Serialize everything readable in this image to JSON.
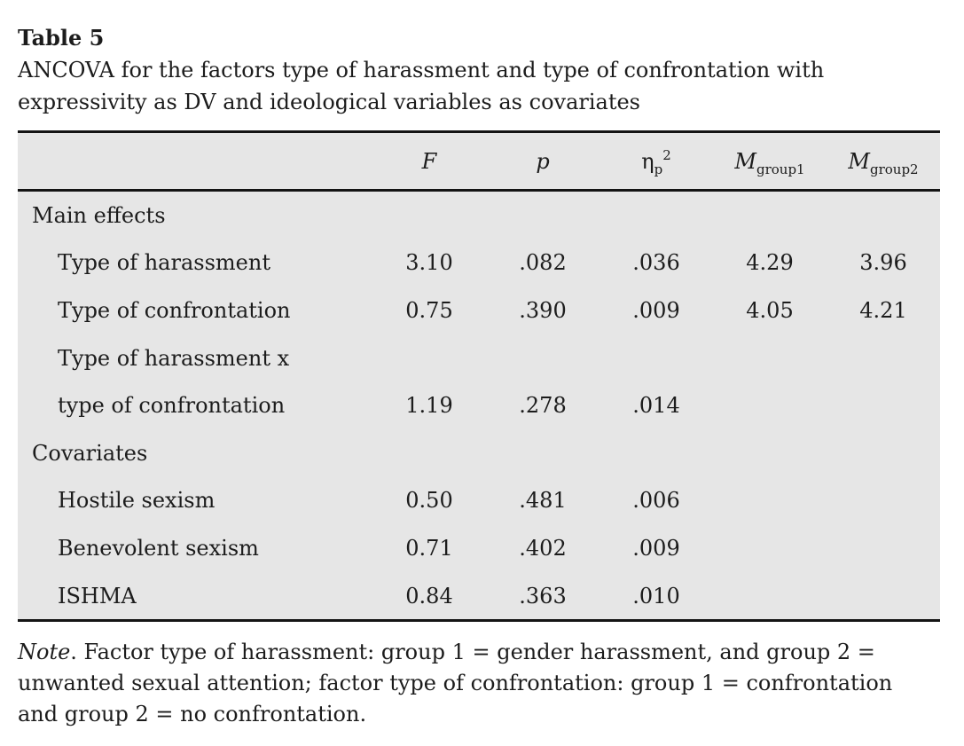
{
  "heading": {
    "table_number": "Table 5",
    "caption_line1": "ANCOVA for the factors type of harassment and type of confrontation with",
    "caption_line2": "expressivity as DV and ideological variables as covariates"
  },
  "table": {
    "columns": {
      "f": "F",
      "p": "p",
      "eta_base": "η",
      "eta_sub": "p",
      "eta_sup": "2",
      "m_base": "M",
      "m1_sub": "group1",
      "m2_sub": "group2"
    },
    "rows": [
      {
        "label": "Main effects",
        "values": [
          "",
          "",
          "",
          "",
          ""
        ]
      },
      {
        "label": "Type of harassment",
        "values": [
          "3.10",
          ".082",
          ".036",
          "4.29",
          "3.96"
        ]
      },
      {
        "label": "Type of confrontation",
        "values": [
          "0.75",
          ".390",
          ".009",
          "4.05",
          "4.21"
        ]
      },
      {
        "label": "Type of harassment x",
        "values": [
          "",
          "",
          "",
          "",
          ""
        ]
      },
      {
        "label": "type of confrontation",
        "values": [
          "1.19",
          ".278",
          ".014",
          "",
          ""
        ]
      },
      {
        "label": "Covariates",
        "values": [
          "",
          "",
          "",
          "",
          ""
        ]
      },
      {
        "label": "Hostile sexism",
        "values": [
          "0.50",
          ".481",
          ".006",
          "",
          ""
        ]
      },
      {
        "label": "Benevolent sexism",
        "values": [
          "0.71",
          ".402",
          ".009",
          "",
          ""
        ]
      },
      {
        "label": "ISHMA",
        "values": [
          "0.84",
          ".363",
          ".010",
          "",
          ""
        ]
      }
    ]
  },
  "note": {
    "lead": "Note",
    "line1_rest": ". Factor type of harassment: group 1 = gender harassment, and group 2 =",
    "line2": "unwanted sexual attention; factor type of confrontation: group 1 = confrontation",
    "line3": "and group 2 = no confrontation."
  },
  "colors": {
    "table_background": "#e6e6e6",
    "rule": "#141414",
    "text": "#1c1c1c",
    "page_background": "#ffffff"
  }
}
